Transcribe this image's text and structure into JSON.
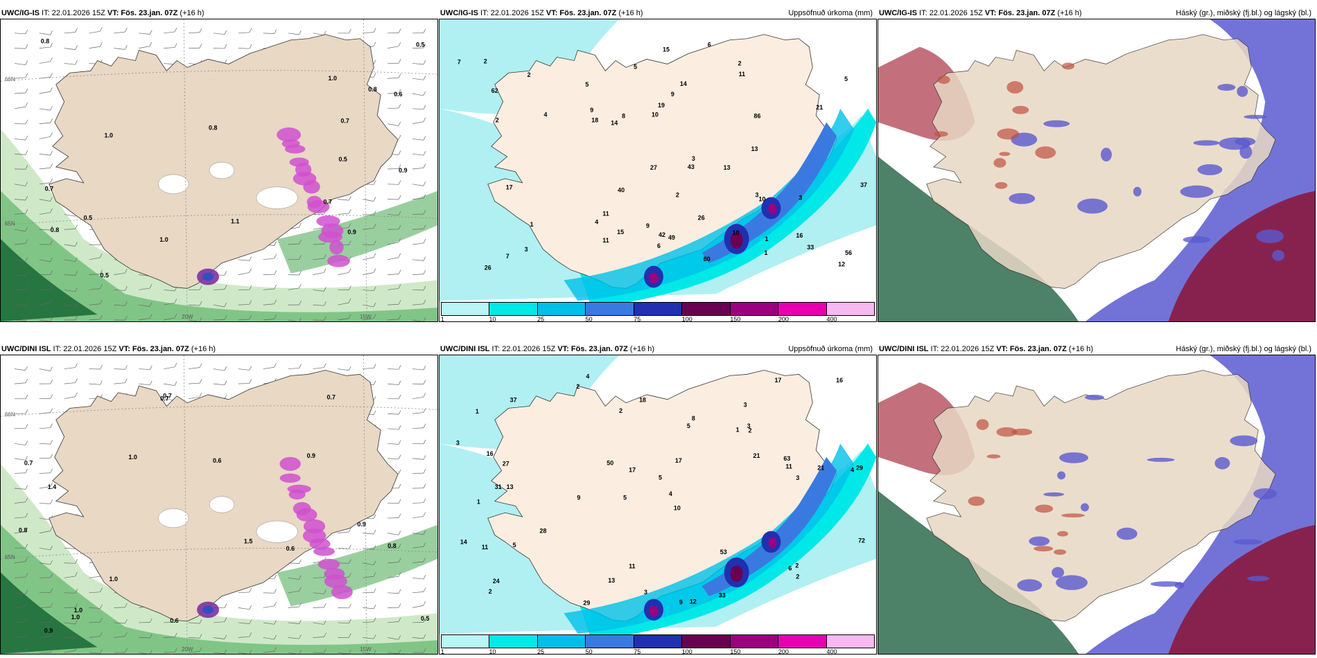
{
  "panels": [
    {
      "model": "UWC/IG-IS",
      "it": "IT: 22.01.2026 15Z",
      "vt_label": "VT:",
      "vt": "Fös. 23.jan. 07Z",
      "lead": "(+16 h)",
      "right": ""
    },
    {
      "model": "UWC/IG-IS",
      "it": "IT: 22.01.2026 15Z",
      "vt_label": "VT:",
      "vt": "Fös. 23.jan. 07Z",
      "lead": "(+16 h)",
      "right": "Uppsöfnuð úrkoma (mm)"
    },
    {
      "model": "UWC/IG-IS",
      "it": "IT: 22.01.2026 15Z",
      "vt_label": "VT:",
      "vt": "Fös. 23.jan. 07Z",
      "lead": "(+16 h)",
      "right": "Háský (gr.), miðský (fj.bl.) og lágský (bl.)"
    },
    {
      "model": "UWC/DINI ISL",
      "it": "IT: 22.01.2026 15Z",
      "vt_label": "VT:",
      "vt": "Fös. 23.jan. 07Z",
      "lead": "(+16 h)",
      "right": ""
    },
    {
      "model": "UWC/DINI ISL",
      "it": "IT: 22.01.2026 15Z",
      "vt_label": "VT:",
      "vt": "Fös. 23.jan. 07Z",
      "lead": "(+16 h)",
      "right": "Uppsöfnuð úrkoma (mm)"
    },
    {
      "model": "UWC/DINI ISL",
      "it": "IT: 22.01.2026 15Z",
      "vt_label": "VT:",
      "vt": "Fös. 23.jan. 07Z",
      "lead": "(+16 h)",
      "right": "Háský (gr.), miðský (fj.bl.) og lágský (bl.)"
    }
  ],
  "colorbar": {
    "ticks": [
      "1",
      "10",
      "25",
      "50",
      "75",
      "100",
      "150",
      "200",
      "400"
    ],
    "colors": [
      "#b8f6f6",
      "#00e8e8",
      "#00c0e8",
      "#3a7ae0",
      "#2030b0",
      "#6a0050",
      "#9a0080",
      "#e800b0",
      "#f8b8f0"
    ]
  },
  "gridlabels": {
    "lat66": "66N",
    "lat65": "65N",
    "lon20": "20W",
    "lon15": "15W"
  },
  "precip_top": [
    "7",
    "3",
    "3",
    "2",
    "5",
    "6",
    "16",
    "2",
    "1",
    "4",
    "12",
    "18",
    "15",
    "15",
    "10",
    "9",
    "3",
    "17",
    "27",
    "5",
    "7",
    "3",
    "6",
    "13",
    "10",
    "11",
    "8",
    "9",
    "21",
    "26",
    "33",
    "40",
    "14",
    "26",
    "43",
    "80",
    "42",
    "86",
    "2",
    "9",
    "4",
    "11",
    "5",
    "11",
    "13",
    "14",
    "19",
    "49",
    "37",
    "56",
    "62",
    "10",
    "2",
    "1",
    "1",
    "2"
  ],
  "precip_bot": [
    "4",
    "3",
    "4",
    "5",
    "10",
    "13",
    "1",
    "1",
    "1",
    "5",
    "5",
    "2",
    "2",
    "9",
    "9",
    "12",
    "11",
    "17",
    "21",
    "28",
    "27",
    "31",
    "29",
    "21",
    "14",
    "16",
    "17",
    "11",
    "2",
    "11",
    "6",
    "8",
    "5",
    "50",
    "53",
    "72",
    "63",
    "13",
    "16",
    "18",
    "24",
    "29",
    "33",
    "37",
    "3",
    "2",
    "2",
    "3",
    "3",
    "4",
    "2",
    "3",
    "17"
  ],
  "wind_top": [
    "0.7",
    "0.8",
    "0.9",
    "1.0",
    "0.5",
    "0.6",
    "0.5",
    "0.8",
    "0.8",
    "1.1",
    "0.7",
    "0.5",
    "1.0",
    "0.9",
    "0.5",
    "1.0",
    "0.7",
    "0.8"
  ],
  "wind_bot": [
    "1.5",
    "1.0",
    "1.0",
    "0.9",
    "0.7",
    "0.6",
    "0.5",
    "1.0",
    "0.9",
    "0.7",
    "0.8",
    "0.6",
    "1.0",
    "0.8",
    "0.7",
    "0.9",
    "0.7",
    "0.6",
    "1.4"
  ],
  "colors": {
    "land": "#e8d8c4",
    "sea_green": "#6dbb76",
    "sea_dark": "#1d6b3a",
    "high_cloud": "#2e6b4e",
    "mid_cloud": "#5a5ad0",
    "low_cloud": "#8a1a40",
    "rain_light": "#b0f0f2"
  }
}
